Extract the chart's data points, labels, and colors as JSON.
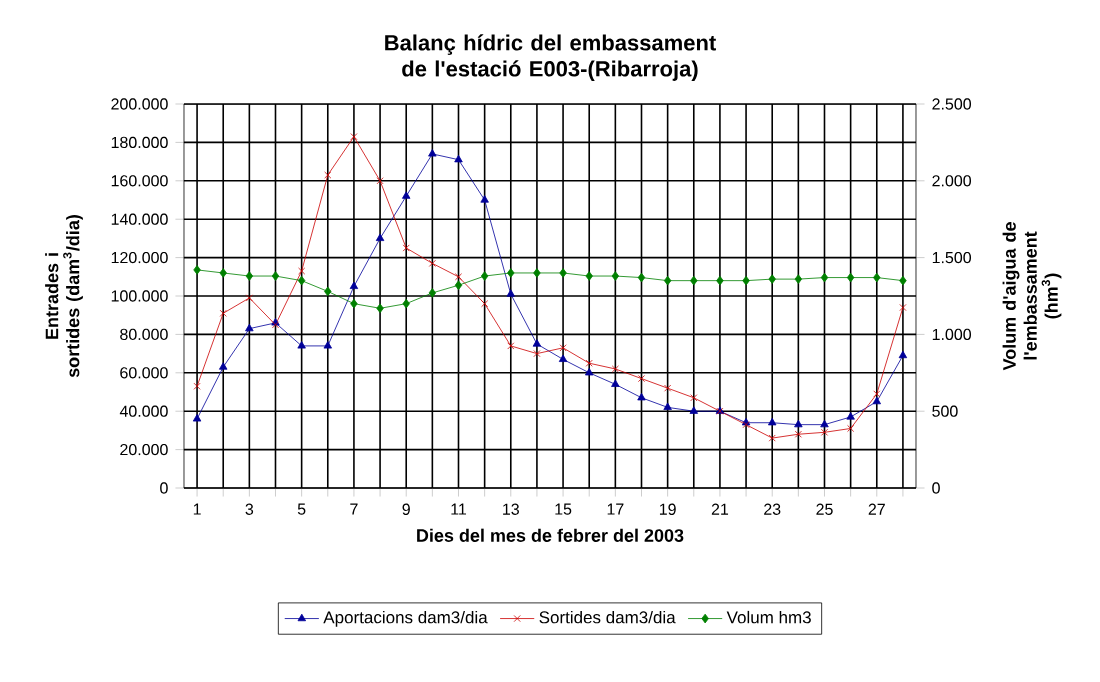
{
  "chart_data": {
    "type": "line",
    "title": "Balanç hídric del embassament de l'estació E003-(Ribarroja)",
    "xlabel": "Dies del mes de febrer del 2003",
    "ylabel": "Entrades i sortides (dam$^{3}$/dia)",
    "y2label": "Volum d'aigua de l'embassament (hm$^{3}$)",
    "x": [
      1,
      2,
      3,
      4,
      5,
      6,
      7,
      8,
      9,
      10,
      11,
      12,
      13,
      14,
      15,
      16,
      17,
      18,
      19,
      20,
      21,
      22,
      23,
      24,
      25,
      26,
      27,
      28
    ],
    "xlim": [
      0.5,
      28.5
    ],
    "xticks": [
      1,
      {
        "value": 2,
        "label": null
      },
      3,
      {
        "value": 4,
        "label": null
      },
      5,
      {
        "value": 6,
        "label": null
      },
      7,
      {
        "value": 8,
        "label": null
      },
      9,
      {
        "value": 10,
        "label": null
      },
      11,
      {
        "value": 12,
        "label": null
      },
      13,
      {
        "value": 14,
        "label": null
      },
      15,
      {
        "value": 16,
        "label": null
      },
      17,
      {
        "value": 18,
        "label": null
      },
      19,
      {
        "value": 20,
        "label": null
      },
      21,
      {
        "value": 22,
        "label": null
      },
      23,
      {
        "value": 24,
        "label": null
      },
      25,
      {
        "value": 26,
        "label": null
      },
      27,
      {
        "value": 28,
        "label": null
      }
    ],
    "ylim": [
      0,
      200000
    ],
    "yticks": [
      0,
      {
        "value": 20000,
        "label": "20.000"
      },
      {
        "value": 40000,
        "label": "40.000"
      },
      {
        "value": 60000,
        "label": "60.000"
      },
      {
        "value": 80000,
        "label": "80.000"
      },
      {
        "value": 100000,
        "label": "100.000"
      },
      {
        "value": 120000,
        "label": "120.000"
      },
      {
        "value": 140000,
        "label": "140.000"
      },
      {
        "value": 160000,
        "label": "160.000"
      },
      {
        "value": 180000,
        "label": "180.000"
      },
      {
        "value": 200000,
        "label": "200.000"
      }
    ],
    "y2lim": [
      0,
      2500
    ],
    "y2ticks": [
      0,
      500,
      {
        "value": 1000,
        "label": "1.000"
      },
      {
        "value": 1500,
        "label": "1.500"
      },
      {
        "value": 2000,
        "label": "2.000"
      },
      {
        "value": 2500,
        "label": "2.500"
      }
    ],
    "grid": true,
    "legend": "bottom",
    "series": [
      {
        "name": "Aportacions dam3/dia",
        "color": "#000099",
        "marker": "triangle",
        "values": [
          36000,
          63000,
          83000,
          86000,
          74000,
          74000,
          105000,
          130000,
          152000,
          174000,
          171000,
          150000,
          101000,
          75000,
          67000,
          60000,
          54000,
          47000,
          42000,
          40000,
          40000,
          34000,
          34000,
          33000,
          33000,
          37000,
          45000,
          69000
        ]
      },
      {
        "name": "Sortides dam3/dia",
        "color": "#cc0000",
        "marker": "cross",
        "values": [
          53000,
          91000,
          99000,
          85000,
          113000,
          163000,
          183000,
          160000,
          125000,
          117000,
          110000,
          96000,
          74000,
          70000,
          73000,
          65000,
          62000,
          57000,
          52000,
          47000,
          40000,
          33000,
          26000,
          28000,
          29000,
          31000,
          49000,
          94000
        ]
      },
      {
        "name": "Volum hm3",
        "color": "#008000",
        "marker": "diamond",
        "axis": "y2",
        "values": [
          1420,
          1400,
          1380,
          1380,
          1350,
          1280,
          1200,
          1170,
          1200,
          1270,
          1320,
          1380,
          1400,
          1400,
          1400,
          1380,
          1380,
          1370,
          1350,
          1350,
          1350,
          1350,
          1360,
          1360,
          1370,
          1370,
          1370,
          1350
        ]
      }
    ]
  }
}
